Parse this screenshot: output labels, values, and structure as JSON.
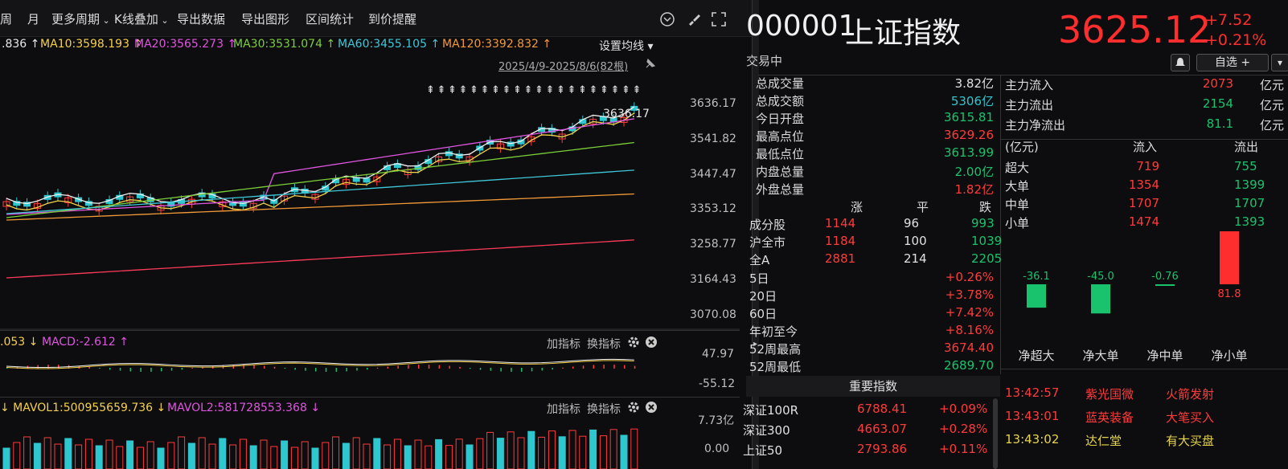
{
  "toolbar": {
    "items": [
      "周",
      "月",
      "更多周期",
      "K线叠加",
      "导出数据",
      "导出图形",
      "区间统计",
      "到价提醒"
    ]
  },
  "ma": {
    "ma5": ".836 ↑",
    "ma10": "MA10:3598.193 ↑",
    "ma20": "MA20:3565.273 ↑",
    "ma30": "MA30:3531.074 ↑",
    "ma60": "MA60:3455.105 ↑",
    "ma120": "MA120:3392.832 ↑",
    "settings": "设置均线 ▾"
  },
  "chart": {
    "date_range": "2025/4/9-2025/8/6(82根)",
    "high_label": "3636.17",
    "y_ticks": [
      "3636.17",
      "3541.82",
      "3447.47",
      "3353.12",
      "3258.77",
      "3164.43",
      "3070.08"
    ]
  },
  "macd": {
    "val1": ".053 ↓",
    "val2": "MACD:-2.612 ↑",
    "add": "加指标",
    "switch": "换指标",
    "ticks": [
      "47.97",
      "-55.12"
    ]
  },
  "vol": {
    "val1": "↓ MAVOL1:500955659.736 ↓",
    "val2": "MAVOL2:581728553.368 ↓",
    "add": "加指标",
    "switch": "换指标",
    "ticks": [
      "7.73亿",
      "0.00"
    ]
  },
  "stock": {
    "code": "000001",
    "name": "上证指数",
    "status": "交易中",
    "price": "3625.12",
    "change": "+7.52",
    "change_pct": "+0.21%",
    "watch_btn": "自选 +"
  },
  "stats": [
    {
      "label": "总成交量",
      "value": "3.82亿",
      "color": "white"
    },
    {
      "label": "总成交额",
      "value": "5306亿",
      "color": "cyan"
    },
    {
      "label": "今日开盘",
      "value": "3615.81",
      "color": "green"
    },
    {
      "label": "最高点位",
      "value": "3629.26",
      "color": "red"
    },
    {
      "label": "最低点位",
      "value": "3613.99",
      "color": "green"
    },
    {
      "label": "内盘总量",
      "value": "2.00亿",
      "color": "green"
    },
    {
      "label": "外盘总量",
      "value": "1.82亿",
      "color": "red"
    }
  ],
  "breadth": {
    "headers": [
      "涨",
      "平",
      "跌"
    ],
    "rows": [
      {
        "label": "成分股",
        "up": "1144",
        "flat": "96",
        "down": "993"
      },
      {
        "label": "沪全市",
        "up": "1184",
        "flat": "100",
        "down": "1039"
      },
      {
        "label": "全A",
        "up": "2881",
        "flat": "214",
        "down": "2205"
      }
    ]
  },
  "periods": [
    {
      "label": "5日",
      "value": "+0.26%",
      "color": "red"
    },
    {
      "label": "20日",
      "value": "+3.78%",
      "color": "red"
    },
    {
      "label": "60日",
      "value": "+7.42%",
      "color": "red"
    },
    {
      "label": "年初至今",
      "value": "+8.16%",
      "color": "red"
    },
    {
      "label": "52周最高",
      "value": "3674.40",
      "color": "red"
    },
    {
      "label": "52周最低",
      "value": "2689.70",
      "color": "green"
    }
  ],
  "important": {
    "title": "重要指数",
    "rows": [
      {
        "name": "深证100R",
        "price": "6788.41",
        "pct": "+0.09%"
      },
      {
        "name": "深证300",
        "price": "4663.07",
        "pct": "+0.28%"
      },
      {
        "name": "上证50",
        "price": "2793.86",
        "pct": "+0.11%"
      }
    ]
  },
  "flow": {
    "main": [
      {
        "label": "主力流入",
        "value": "2073",
        "unit": "亿元",
        "color": "red"
      },
      {
        "label": "主力流出",
        "value": "2154",
        "unit": "亿元",
        "color": "green"
      },
      {
        "label": "主力净流出",
        "value": "81.1",
        "unit": "亿元",
        "color": "green"
      }
    ],
    "header": [
      "(亿元)",
      "流入",
      "流出"
    ],
    "rows": [
      {
        "label": "超大",
        "in": "719",
        "out": "755"
      },
      {
        "label": "大单",
        "in": "1354",
        "out": "1399"
      },
      {
        "label": "中单",
        "in": "1707",
        "out": "1707"
      },
      {
        "label": "小单",
        "in": "1474",
        "out": "1393"
      }
    ]
  },
  "netflow_chart": {
    "categories": [
      "净超大",
      "净大单",
      "净中单",
      "净小单"
    ],
    "values": [
      -36.1,
      -45.0,
      -0.76,
      81.8
    ],
    "value_labels": [
      "-36.1",
      "-45.0",
      "-0.76",
      "81.8"
    ]
  },
  "ticks": [
    {
      "time": "13:42:57",
      "name": "紫光国微",
      "action": "火箭发射",
      "name_color": "red",
      "action_color": "red"
    },
    {
      "time": "13:43:01",
      "name": "蓝英装备",
      "action": "大笔买入",
      "name_color": "red",
      "action_color": "red"
    },
    {
      "time": "13:43:02",
      "name": "达仁堂",
      "action": "有大买盘",
      "name_color": "yellow",
      "action_color": "yellow"
    }
  ],
  "colors": {
    "up": "#ff3b3b",
    "down": "#19c36e",
    "bg": "#0d0d0f"
  }
}
